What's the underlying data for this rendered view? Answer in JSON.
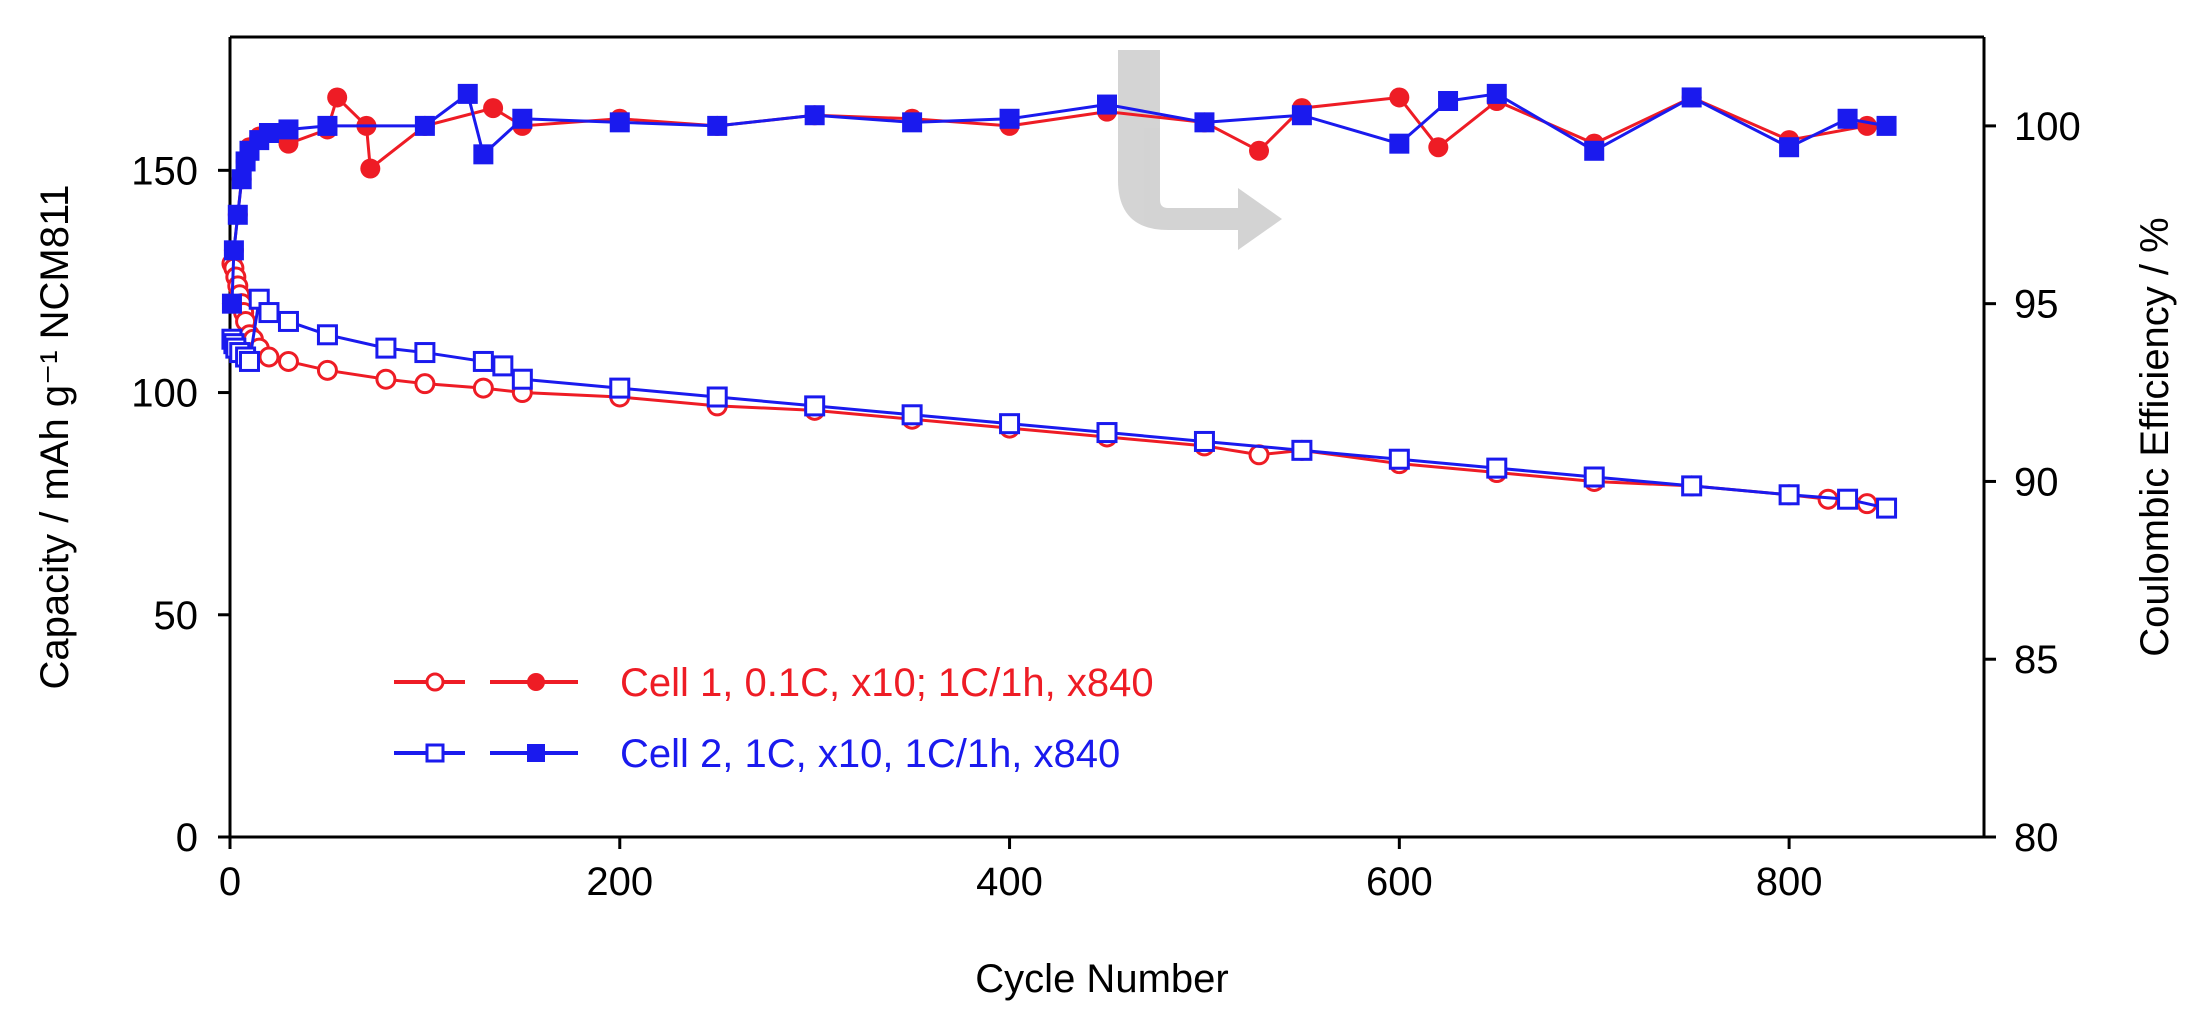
{
  "chart_data": {
    "type": "scatter",
    "title": "",
    "xlabel": "Cycle Number",
    "ylabel_left": "Capacity / mAh g⁻¹ NCM811",
    "ylabel_right": "Coulombic Efficiency / %",
    "xlim": [
      0,
      900
    ],
    "ylim_left": [
      0,
      180
    ],
    "ylim_right": [
      80,
      102.5
    ],
    "xticks": [
      "0",
      "200",
      "400",
      "600",
      "800"
    ],
    "yticks_left": [
      "0",
      "50",
      "100",
      "150"
    ],
    "yticks_right": [
      "80",
      "85",
      "90",
      "95",
      "100"
    ],
    "grid": false,
    "legend_position": "bottom-left",
    "annotation": "curved grey arrow pointing from the efficiency data toward the right (efficiency) axis",
    "series": [
      {
        "name": "Cell 1, 0.1C, x10; 1C/1h, x840",
        "color": "#ee1c25",
        "capacity_marker": "open-circle",
        "efficiency_marker": "filled-circle",
        "capacity": {
          "x": [
            1,
            2,
            3,
            4,
            5,
            6,
            7,
            8,
            10,
            12,
            15,
            20,
            30,
            50,
            80,
            100,
            130,
            150,
            200,
            250,
            300,
            350,
            400,
            450,
            500,
            528,
            550,
            600,
            650,
            700,
            750,
            800,
            820,
            840
          ],
          "y": [
            129,
            128,
            126,
            124,
            122,
            120,
            118,
            116,
            113,
            112,
            110,
            108,
            107,
            105,
            103,
            102,
            101,
            100,
            99,
            97,
            96,
            94,
            92,
            90,
            88,
            86,
            87,
            84,
            82,
            80,
            79,
            77,
            76,
            75
          ]
        },
        "efficiency": {
          "x": [
            1,
            2,
            4,
            6,
            8,
            10,
            15,
            20,
            30,
            50,
            55,
            70,
            72,
            100,
            135,
            150,
            200,
            250,
            300,
            350,
            400,
            450,
            500,
            528,
            550,
            600,
            620,
            650,
            700,
            750,
            800,
            840
          ],
          "y": [
            95,
            96.5,
            97.5,
            98.5,
            99,
            99.4,
            99.7,
            99.8,
            99.5,
            99.9,
            100.8,
            100,
            98.8,
            100,
            100.5,
            100,
            100.2,
            100,
            100.3,
            100.2,
            100,
            100.4,
            100.1,
            99.3,
            100.5,
            100.8,
            99.4,
            100.7,
            99.5,
            100.8,
            99.6,
            100
          ]
        }
      },
      {
        "name": "Cell 2, 1C, x10, 1C/1h, x840",
        "color": "#1a1aee",
        "capacity_marker": "open-square",
        "efficiency_marker": "filled-square",
        "capacity": {
          "x": [
            1,
            2,
            3,
            5,
            8,
            10,
            15,
            20,
            30,
            50,
            80,
            100,
            130,
            140,
            150,
            200,
            250,
            300,
            350,
            400,
            450,
            500,
            550,
            600,
            650,
            700,
            750,
            800,
            830,
            850
          ],
          "y": [
            112,
            111,
            110,
            109,
            108,
            107,
            121,
            118,
            116,
            113,
            110,
            109,
            107,
            106,
            103,
            101,
            99,
            97,
            95,
            93,
            91,
            89,
            87,
            85,
            83,
            81,
            79,
            77,
            76,
            74
          ]
        },
        "efficiency": {
          "x": [
            1,
            2,
            4,
            6,
            8,
            10,
            15,
            20,
            30,
            50,
            100,
            122,
            130,
            150,
            200,
            250,
            300,
            350,
            400,
            450,
            500,
            550,
            600,
            625,
            650,
            700,
            750,
            800,
            830,
            850
          ],
          "y": [
            95,
            96.5,
            97.5,
            98.5,
            99,
            99.3,
            99.6,
            99.8,
            99.9,
            100,
            100,
            100.9,
            99.2,
            100.2,
            100.1,
            100,
            100.3,
            100.1,
            100.2,
            100.6,
            100.1,
            100.3,
            99.5,
            100.7,
            100.9,
            99.3,
            100.8,
            99.4,
            100.2,
            100
          ]
        }
      }
    ]
  }
}
